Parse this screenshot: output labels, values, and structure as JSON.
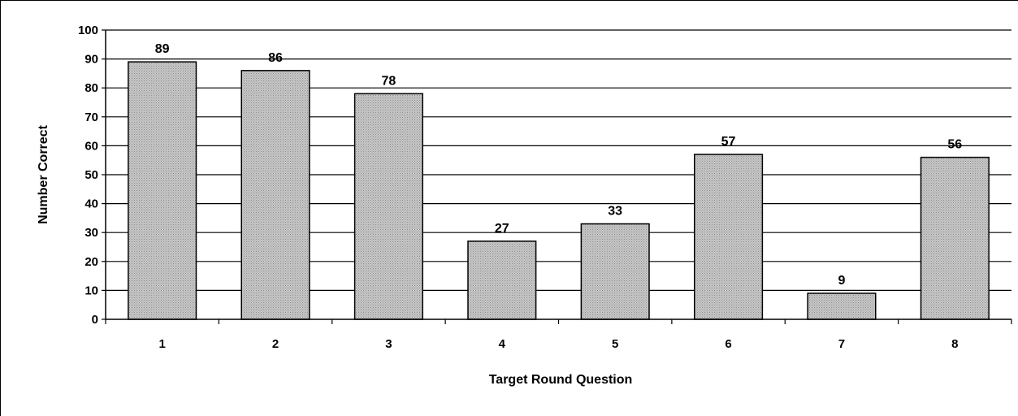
{
  "chart_data": {
    "type": "bar",
    "title": "",
    "xlabel": "Target Round Question",
    "ylabel": "Number Correct",
    "categories": [
      "1",
      "2",
      "3",
      "4",
      "5",
      "6",
      "7",
      "8"
    ],
    "values": [
      89,
      86,
      78,
      27,
      33,
      57,
      9,
      56
    ],
    "data_labels": [
      "89",
      "86",
      "78",
      "27",
      "33",
      "57",
      "9",
      "56"
    ],
    "ylim": [
      0,
      100
    ],
    "yticks": [
      0,
      10,
      20,
      30,
      40,
      50,
      60,
      70,
      80,
      90,
      100
    ],
    "grid": true,
    "legend": "none",
    "bar_fill": "dotted-gray",
    "colors": {
      "bar_fill_base": "#c8c8c8",
      "bar_dot": "#8a8a8a",
      "bar_stroke": "#000000",
      "grid": "#000000",
      "axis": "#000000"
    }
  }
}
